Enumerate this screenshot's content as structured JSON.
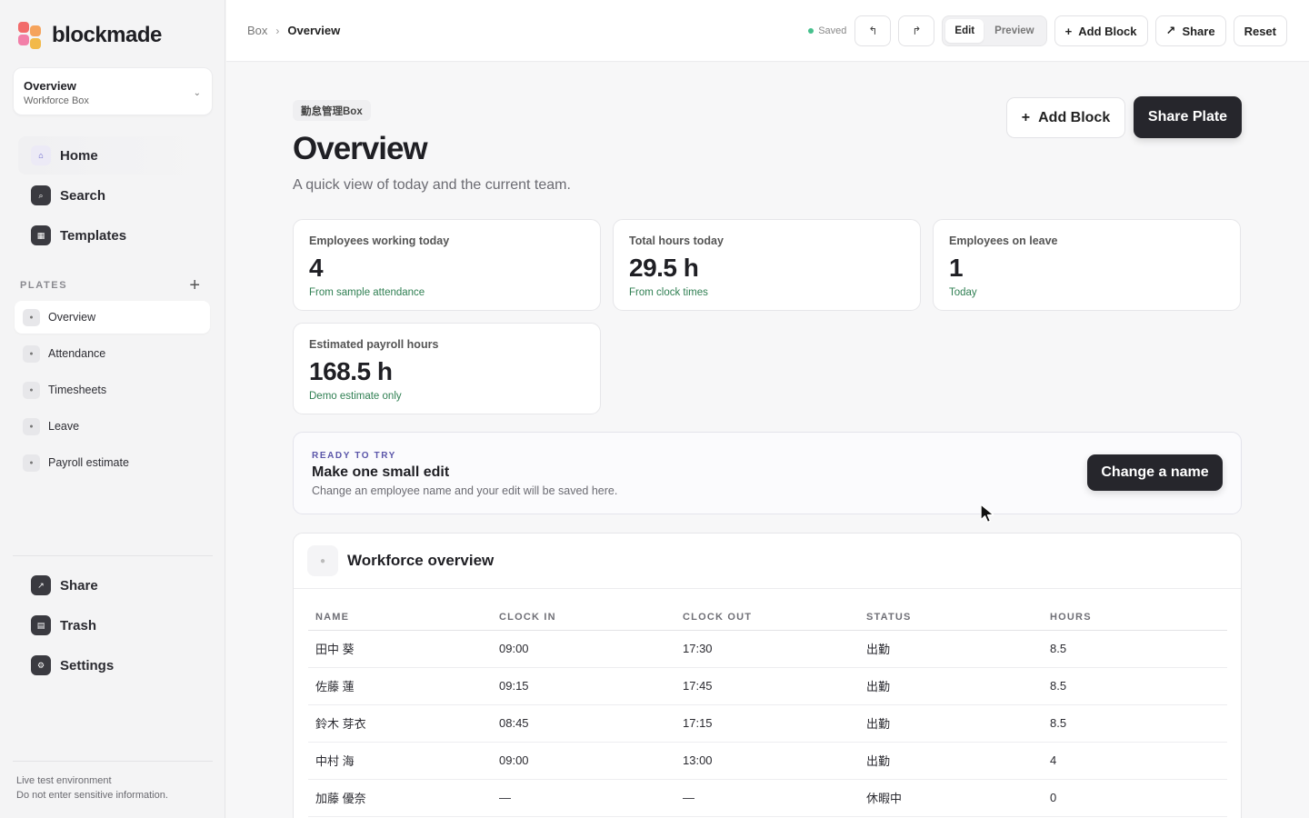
{
  "brand": {
    "name": "blockmade",
    "colors": [
      "#f26b6b",
      "#f5a35c",
      "#f27fa8",
      "#f2b94a"
    ]
  },
  "switcher": {
    "title": "Overview",
    "subtitle": "Workforce Box",
    "icon": "chevron-down-icon",
    "chevron": "⌄"
  },
  "nav": [
    {
      "label": "Home",
      "icon": "home-icon",
      "glyph": "⌂"
    },
    {
      "label": "Search",
      "icon": "search-icon",
      "glyph": "⌕"
    },
    {
      "label": "Templates",
      "icon": "templates-icon",
      "glyph": "▦"
    }
  ],
  "plates": {
    "heading": "PLATES",
    "add_glyph": "+",
    "items": [
      {
        "label": "Overview",
        "active": true
      },
      {
        "label": "Attendance"
      },
      {
        "label": "Timesheets"
      },
      {
        "label": "Leave"
      },
      {
        "label": "Payroll estimate"
      }
    ]
  },
  "nav_bottom": [
    {
      "label": "Share",
      "icon": "share-icon",
      "glyph": "↗"
    },
    {
      "label": "Trash",
      "icon": "trash-icon",
      "glyph": "▤"
    },
    {
      "label": "Settings",
      "icon": "settings-icon",
      "glyph": "⚙"
    }
  ],
  "footer": {
    "line1": "Live test environment",
    "line2": "Do not enter sensitive information."
  },
  "topbar": {
    "breadcrumb": [
      "Box",
      "Overview"
    ],
    "breadcrumb_sep": "›",
    "saved": "Saved",
    "undo_glyph": "↰",
    "redo_glyph": "↱",
    "mode": {
      "edit": "Edit",
      "preview": "Preview",
      "selected": "edit"
    },
    "add_block": "Add Block",
    "share": "Share",
    "reset": "Reset"
  },
  "page": {
    "tag": "勤怠管理Box",
    "title": "Overview",
    "subtitle": "A quick view of today and the current team.",
    "add_block": "Add Block",
    "share_plate": "Share Plate"
  },
  "stats": [
    {
      "label": "Employees working today",
      "value": "4",
      "sub": "From sample attendance"
    },
    {
      "label": "Total hours today",
      "value": "29.5 h",
      "sub": "From clock times"
    },
    {
      "label": "Employees on leave",
      "value": "1",
      "sub": "Today"
    },
    {
      "label": "Estimated payroll hours",
      "value": "168.5 h",
      "sub": "Demo estimate only"
    }
  ],
  "banner": {
    "kicker": "READY TO TRY",
    "title": "Make one small edit",
    "desc": "Change an employee name and your edit will be saved here.",
    "button": "Change a name"
  },
  "table": {
    "title": "Workforce overview",
    "columns": [
      "NAME",
      "CLOCK IN",
      "CLOCK OUT",
      "STATUS",
      "HOURS"
    ],
    "rows": [
      [
        "田中 葵",
        "09:00",
        "17:30",
        "出勤",
        "8.5"
      ],
      [
        "佐藤 蓮",
        "09:15",
        "17:45",
        "出勤",
        "8.5"
      ],
      [
        "鈴木 芽衣",
        "08:45",
        "17:15",
        "出勤",
        "8.5"
      ],
      [
        "中村 海",
        "09:00",
        "13:00",
        "出勤",
        "4"
      ],
      [
        "加藤 優奈",
        "—",
        "—",
        "休暇中",
        "0"
      ]
    ]
  }
}
